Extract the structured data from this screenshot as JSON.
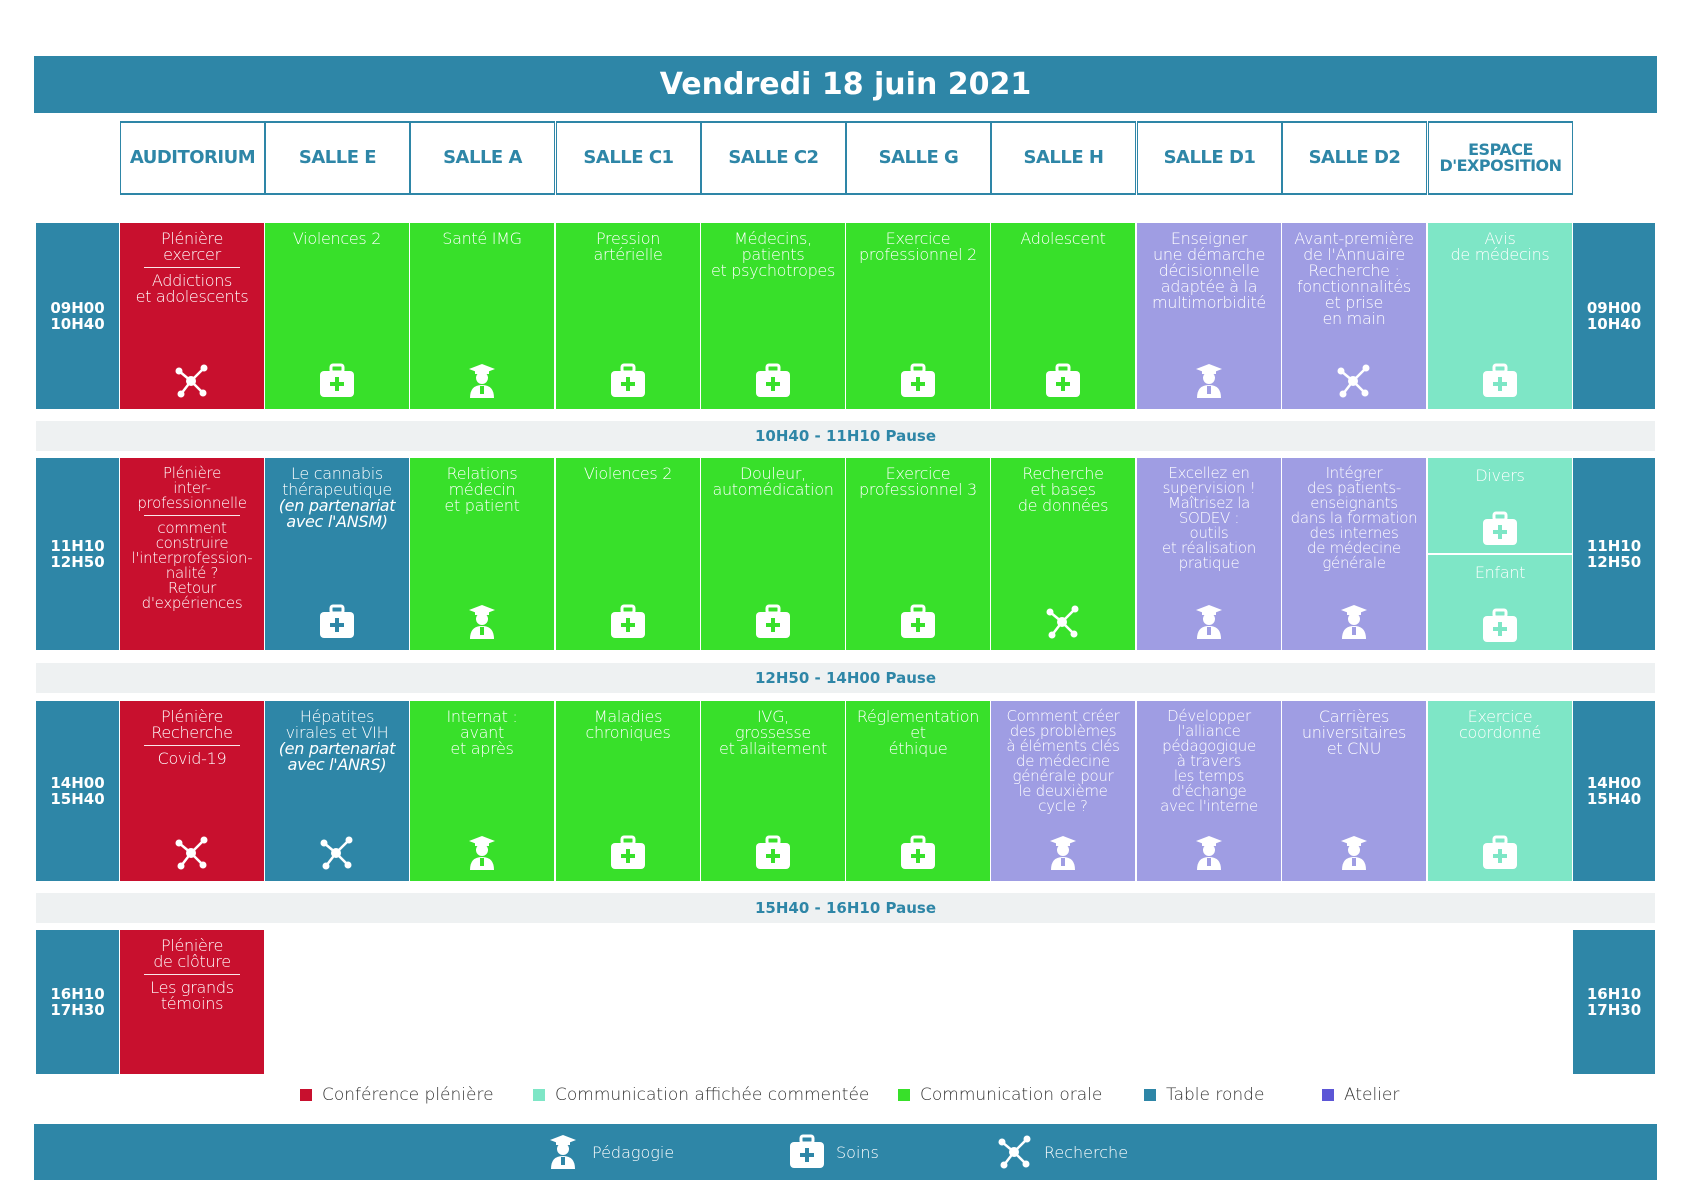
{
  "title": "Vendredi 18 juin 2021",
  "rooms": [
    "AUDITORIUM",
    "SALLE E",
    "SALLE A",
    "SALLE C1",
    "SALLE C2",
    "SALLE G",
    "SALLE H",
    "SALLE D1",
    "SALLE D2",
    "ESPACE D'EXPOSITION"
  ],
  "slots": [
    {
      "start": "09H00",
      "end": "10H40"
    },
    {
      "start": "11H10",
      "end": "12H50"
    },
    {
      "start": "14H00",
      "end": "15H40"
    },
    {
      "start": "16H10",
      "end": "17H30"
    }
  ],
  "pauses": [
    "10H40 - 11H10 Pause",
    "12H50 - 14H00 Pause",
    "15H40 - 16H10 Pause"
  ],
  "sessions": [
    {
      "slot": 0,
      "room": 0,
      "cat": "pleniere",
      "icon": "recherche",
      "lines": [
        "Plénière",
        "exercer"
      ],
      "sub": [
        "Addictions",
        "et adolescents"
      ]
    },
    {
      "slot": 0,
      "room": 1,
      "cat": "orale",
      "icon": "soins",
      "lines": [
        "Violences 2"
      ]
    },
    {
      "slot": 0,
      "room": 2,
      "cat": "orale",
      "icon": "pedagogie",
      "lines": [
        "Santé IMG"
      ]
    },
    {
      "slot": 0,
      "room": 3,
      "cat": "orale",
      "icon": "soins",
      "lines": [
        "Pression",
        "artérielle"
      ]
    },
    {
      "slot": 0,
      "room": 4,
      "cat": "orale",
      "icon": "soins",
      "lines": [
        "Médecins,",
        "patients",
        "et psychotropes"
      ]
    },
    {
      "slot": 0,
      "room": 5,
      "cat": "orale",
      "icon": "soins",
      "lines": [
        "Exercice",
        "professionnel 2"
      ]
    },
    {
      "slot": 0,
      "room": 6,
      "cat": "orale",
      "icon": "soins",
      "lines": [
        "Adolescent"
      ]
    },
    {
      "slot": 0,
      "room": 7,
      "cat": "atelier",
      "icon": "pedagogie",
      "lines": [
        "Enseigner",
        "une démarche",
        "décisionnelle",
        "adaptée à la",
        "multimorbidité"
      ]
    },
    {
      "slot": 0,
      "room": 8,
      "cat": "atelier",
      "icon": "recherche",
      "lines": [
        "Avant-première",
        "de l'Annuaire",
        "Recherche :",
        "fonctionnalités",
        "et prise",
        "en main"
      ]
    },
    {
      "slot": 0,
      "room": 9,
      "cat": "affichee",
      "icon": "soins",
      "lines": [
        "Avis",
        "de médecins"
      ]
    },
    {
      "slot": 1,
      "room": 0,
      "cat": "pleniere",
      "icon": "",
      "lines": [
        "Plénière",
        "inter-",
        "professionnelle"
      ],
      "sub": [
        "comment",
        "construire",
        "l'interprofession-",
        "nalité ?",
        "Retour",
        "d'expériences"
      ]
    },
    {
      "slot": 1,
      "room": 1,
      "cat": "ronde",
      "icon": "soins",
      "lines": [
        "Le cannabis",
        "thérapeutique"
      ],
      "ital": [
        "(en partenariat",
        "avec l'ANSM)"
      ]
    },
    {
      "slot": 1,
      "room": 2,
      "cat": "orale",
      "icon": "pedagogie",
      "lines": [
        "Relations",
        "médecin",
        "et patient"
      ]
    },
    {
      "slot": 1,
      "room": 3,
      "cat": "orale",
      "icon": "soins",
      "lines": [
        "Violences 2"
      ]
    },
    {
      "slot": 1,
      "room": 4,
      "cat": "orale",
      "icon": "soins",
      "lines": [
        "Douleur,",
        "automédication"
      ]
    },
    {
      "slot": 1,
      "room": 5,
      "cat": "orale",
      "icon": "soins",
      "lines": [
        "Exercice",
        "professionnel 3"
      ]
    },
    {
      "slot": 1,
      "room": 6,
      "cat": "orale",
      "icon": "recherche",
      "lines": [
        "Recherche",
        "et bases",
        "de données"
      ]
    },
    {
      "slot": 1,
      "room": 7,
      "cat": "atelier",
      "icon": "pedagogie",
      "lines": [
        "Excellez en",
        "supervision !",
        "Maîtrisez la",
        "SODEV :",
        "outils",
        "et réalisation",
        "pratique"
      ]
    },
    {
      "slot": 1,
      "room": 8,
      "cat": "atelier",
      "icon": "pedagogie",
      "lines": [
        "Intégrer",
        "des patients-",
        "enseignants",
        "dans la formation",
        "des internes",
        "de médecine",
        "générale"
      ]
    },
    {
      "slot": 2,
      "room": 0,
      "cat": "pleniere",
      "icon": "recherche",
      "lines": [
        "Plénière",
        "Recherche"
      ],
      "sub": [
        "Covid-19"
      ]
    },
    {
      "slot": 2,
      "room": 1,
      "cat": "ronde",
      "icon": "recherche",
      "lines": [
        "Hépatites",
        "virales et VIH"
      ],
      "ital": [
        "(en partenariat",
        "avec l'ANRS)"
      ]
    },
    {
      "slot": 2,
      "room": 2,
      "cat": "orale",
      "icon": "pedagogie",
      "lines": [
        "Internat :",
        "avant",
        "et après"
      ]
    },
    {
      "slot": 2,
      "room": 3,
      "cat": "orale",
      "icon": "soins",
      "lines": [
        "Maladies",
        "chroniques"
      ]
    },
    {
      "slot": 2,
      "room": 4,
      "cat": "orale",
      "icon": "soins",
      "lines": [
        "IVG,",
        "grossesse",
        "et allaitement"
      ]
    },
    {
      "slot": 2,
      "room": 5,
      "cat": "orale",
      "icon": "soins",
      "lines": [
        "Réglementation",
        "et",
        "éthique"
      ]
    },
    {
      "slot": 2,
      "room": 6,
      "cat": "atelier",
      "icon": "pedagogie",
      "lines": [
        "Comment créer",
        "des problèmes",
        "à éléments clés",
        "de médecine",
        "générale pour",
        "le deuxième",
        "cycle ?"
      ]
    },
    {
      "slot": 2,
      "room": 7,
      "cat": "atelier",
      "icon": "pedagogie",
      "lines": [
        "Développer",
        "l'alliance",
        "pédagogique",
        "à travers",
        "les temps",
        "d'échange",
        "avec l'interne"
      ]
    },
    {
      "slot": 2,
      "room": 8,
      "cat": "atelier",
      "icon": "pedagogie",
      "lines": [
        "Carrières",
        "universitaires",
        "et CNU"
      ]
    },
    {
      "slot": 2,
      "room": 9,
      "cat": "affichee",
      "icon": "soins",
      "lines": [
        "Exercice",
        "coordonné"
      ]
    },
    {
      "slot": 3,
      "room": 0,
      "cat": "pleniere",
      "icon": "",
      "lines": [
        "Plénière",
        "de clôture"
      ],
      "sub": [
        "Les grands",
        "témoins"
      ]
    }
  ],
  "split_session": {
    "slot": 1,
    "room": 9,
    "cat": "affichee",
    "top": "Divers",
    "bottom": "Enfant"
  },
  "legend": [
    {
      "label": "Conférence plénière",
      "color": "#c8102e"
    },
    {
      "label": "Communication affichée commentée",
      "color": "#7ee6c6"
    },
    {
      "label": "Communication orale",
      "color": "#38e02a"
    },
    {
      "label": "Table ronde",
      "color": "#2e86a7"
    },
    {
      "label": "Atelier",
      "color": "#5c56d6"
    }
  ],
  "footer": [
    {
      "label": "Pédagogie",
      "icon": "pedagogie"
    },
    {
      "label": "Soins",
      "icon": "soins"
    },
    {
      "label": "Recherche",
      "icon": "recherche"
    }
  ]
}
